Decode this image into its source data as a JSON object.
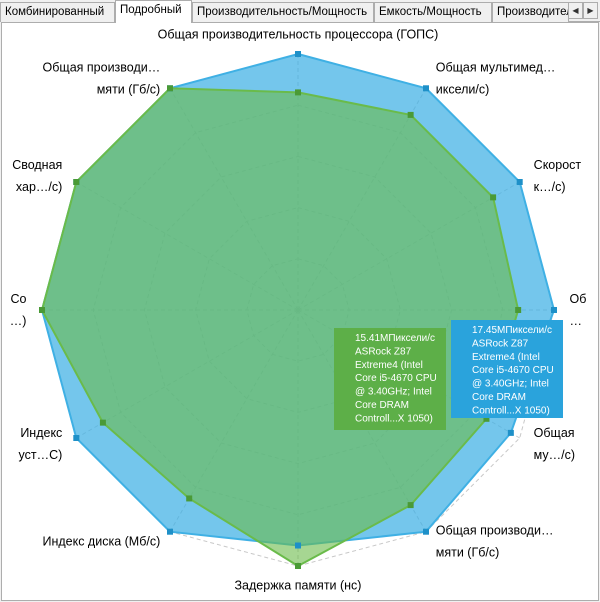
{
  "tabs": [
    {
      "label": "Комбинированный",
      "active": false
    },
    {
      "label": "Подробный",
      "active": true
    },
    {
      "label": "Производительность/Мощность",
      "active": false
    },
    {
      "label": "Емкость/Мощность",
      "active": false
    },
    {
      "label": "Производительность/Цена",
      "active": false
    }
  ],
  "tab_scroll": {
    "left": "◀",
    "right": "▶"
  },
  "chart_data": {
    "type": "radar",
    "scale": [
      0,
      100
    ],
    "grid_levels": 5,
    "grid": true,
    "axes": [
      {
        "label": [
          "Общая производительность процессора (ГОПС)"
        ],
        "anchor": "middle"
      },
      {
        "label": [
          "Общая  мультимед…",
          "иксели/с)"
        ],
        "anchor": "start"
      },
      {
        "label": [
          "Скорост",
          "к…/с)"
        ],
        "anchor": "start"
      },
      {
        "label": [
          "Об",
          "…"
        ],
        "anchor": "start"
      },
      {
        "label": [
          "Общая",
          "му…/с)"
        ],
        "anchor": "start"
      },
      {
        "label": [
          "Общая  производи…",
          "мяти (Гб/с)"
        ],
        "anchor": "start"
      },
      {
        "label": [
          "Задержка памяти (нс)"
        ],
        "anchor": "middle"
      },
      {
        "label": [
          "Индекс диска (Мб/с)"
        ],
        "anchor": "end"
      },
      {
        "label": [
          "Индекс",
          "уст…С)"
        ],
        "anchor": "end"
      },
      {
        "label": [
          "Со",
          "…)"
        ],
        "anchor": "end"
      },
      {
        "label": [
          "Сводная",
          "хар…/с)"
        ],
        "anchor": "end"
      },
      {
        "label": [
          "Общая производи…",
          "мяти (Гб/с)"
        ],
        "anchor": "end"
      }
    ],
    "series": [
      {
        "color": "#3fb0e4",
        "values": [
          100,
          100,
          100,
          100,
          96,
          100,
          92,
          100,
          100,
          100,
          100,
          100
        ]
      },
      {
        "color": "#6abb4a",
        "values": [
          85,
          88,
          88,
          86,
          85,
          88,
          100,
          85,
          88,
          100,
          100,
          100
        ]
      }
    ],
    "tooltips": [
      {
        "color": "#5daf48",
        "lines": [
          "15.41МПиксели/с",
          "ASRock Z87",
          "Extreme4 (Intel",
          "Core i5-4670 CPU",
          "@ 3.40GHz; Intel",
          "Core DRAM",
          "Controll...X 1050)"
        ]
      },
      {
        "color": "#2aa3dc",
        "lines": [
          "17.45МПиксели/с",
          "ASRock Z87",
          "Extreme4 (Intel",
          "Core i5-4670 CPU",
          "@ 3.40GHz; Intel",
          "Core DRAM",
          "Controll...X 1050)"
        ]
      }
    ]
  }
}
